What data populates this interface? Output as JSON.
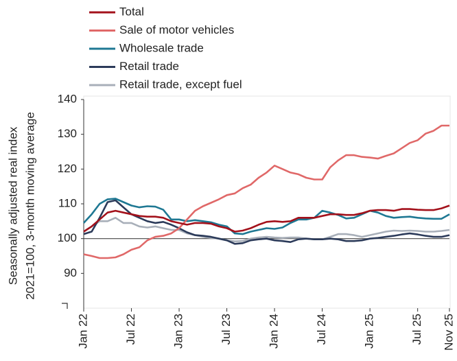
{
  "chart_data": {
    "type": "line",
    "ylabel": [
      "Seasonally adjusted real index",
      "2021=100, 3-month moving average"
    ],
    "categories": [
      "Jan 22",
      null,
      null,
      null,
      null,
      null,
      "Jul 22",
      null,
      null,
      null,
      null,
      null,
      "Jan 23",
      null,
      null,
      null,
      null,
      null,
      "Jul 23",
      null,
      null,
      null,
      null,
      null,
      "Jan 24",
      null,
      null,
      null,
      null,
      null,
      "Jul 24",
      null,
      null,
      null,
      null,
      null,
      "Jan 25",
      null,
      null,
      null,
      null,
      null,
      "Jul 25",
      null,
      null,
      null,
      "Nov 25"
    ],
    "ylim": [
      80,
      140
    ],
    "yticks": [
      90,
      100,
      110,
      120,
      130,
      140
    ],
    "reference_line": 100,
    "legend": "top-left",
    "series": [
      {
        "name": "Total",
        "color": "#a3111b",
        "values": [
          102,
          103.5,
          105.5,
          107.5,
          108,
          107.5,
          107,
          106.5,
          106.3,
          106.3,
          106,
          105,
          104.5,
          104,
          104.5,
          104.5,
          104.3,
          103.5,
          103,
          102,
          102.3,
          103,
          104,
          104.8,
          105,
          104.8,
          105,
          106,
          106,
          106,
          106.5,
          107,
          107,
          106.8,
          106.8,
          107.3,
          108,
          108.2,
          108.2,
          108,
          108.5,
          108.5,
          108.3,
          108.2,
          108.2,
          108.7,
          109.5
        ]
      },
      {
        "name": "Sale of motor vehicles",
        "color": "#e06868",
        "values": [
          95.5,
          95,
          94.4,
          94.4,
          94.6,
          95.5,
          96.8,
          97.5,
          99.5,
          100.5,
          100.8,
          101.5,
          103,
          105.5,
          108,
          109.3,
          110.3,
          111.3,
          112.5,
          113,
          114.5,
          115.5,
          117.5,
          119,
          121,
          120,
          119,
          118.5,
          117.5,
          117,
          117,
          120.5,
          122.5,
          124,
          124,
          123.5,
          123.3,
          123,
          123.8,
          124.5,
          126,
          127.5,
          128.3,
          130.2,
          131,
          132.5,
          132.5
        ]
      },
      {
        "name": "Wholesale trade",
        "color": "#1e7893",
        "values": [
          104.5,
          107,
          110,
          111.3,
          111.5,
          110.5,
          109.5,
          109,
          109.3,
          109.2,
          108.3,
          105.5,
          105.5,
          105,
          105.3,
          105,
          104.7,
          104,
          103.5,
          101.5,
          101.3,
          102,
          102.5,
          103,
          102.8,
          103.2,
          104.5,
          105.5,
          105.5,
          106,
          108,
          107.5,
          106.8,
          105.8,
          106,
          107,
          108,
          107.5,
          106.5,
          106,
          106.2,
          106.3,
          106,
          105.8,
          105.7,
          105.7,
          107
        ]
      },
      {
        "name": "Retail trade",
        "color": "#2c3b5a",
        "values": [
          101.3,
          102,
          106,
          110.5,
          111,
          109,
          107,
          106,
          105,
          104.5,
          104.8,
          104,
          103,
          101.8,
          101,
          100.8,
          100.5,
          100,
          99.5,
          98.5,
          98.7,
          99.5,
          99.8,
          100,
          99.5,
          99.3,
          99,
          99.8,
          100,
          99.8,
          99.8,
          100,
          99.8,
          99.3,
          99.3,
          99.5,
          100,
          100.2,
          100.5,
          100.8,
          101.2,
          101.5,
          101.2,
          100.8,
          100.5,
          100.5,
          101
        ]
      },
      {
        "name": "Retail trade, except fuel",
        "color": "#a8afb9",
        "values": [
          102,
          103.5,
          105,
          105,
          106,
          104.5,
          104.5,
          103.5,
          103.2,
          103.5,
          103,
          102.5,
          102.5,
          101.5,
          101,
          100.5,
          100.2,
          100,
          99.5,
          99.2,
          99.3,
          100,
          100.3,
          100.5,
          100.3,
          100.2,
          100.3,
          100.3,
          100,
          99.8,
          99.8,
          100.5,
          101.3,
          101.3,
          101,
          100.5,
          101,
          101.5,
          102,
          102.3,
          102.2,
          102.3,
          102.2,
          102,
          102,
          102.2,
          102.5
        ]
      }
    ]
  }
}
